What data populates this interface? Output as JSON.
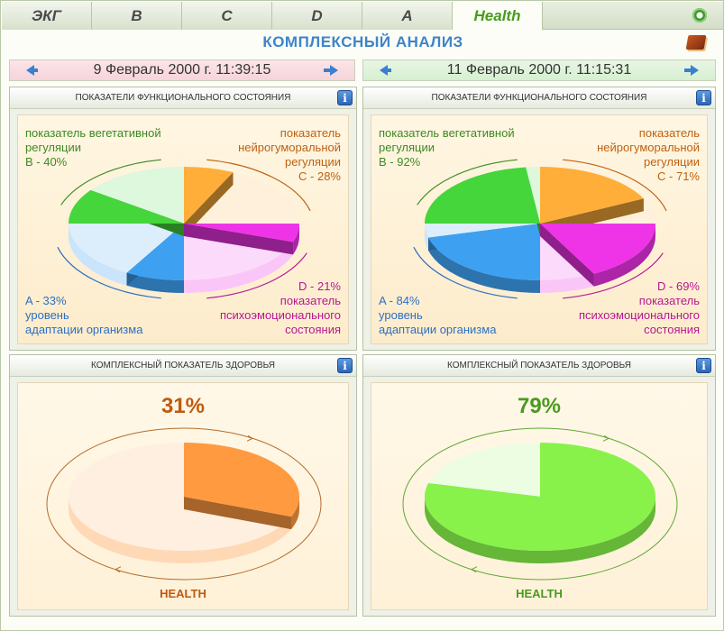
{
  "tabs": [
    {
      "label": "ЭКГ",
      "active": false
    },
    {
      "label": "B",
      "active": false
    },
    {
      "label": "C",
      "active": false
    },
    {
      "label": "D",
      "active": false
    },
    {
      "label": "A",
      "active": false
    },
    {
      "label": "Health",
      "active": true
    }
  ],
  "page_title": "КОМПЛЕКСНЫЙ АНАЛИЗ",
  "dates": {
    "left": "9 Февраль 2000 г. 11:39:15",
    "right": "11 Февраль 2000 г. 11:15:31"
  },
  "panels": {
    "functional_title": "ПОКАЗАТЕЛИ ФУНКЦИОНАЛЬНОГО СОСТОЯНИЯ",
    "health_title": "КОМПЛЕКСНЫЙ ПОКАЗАТЕЛЬ ЗДОРОВЬЯ",
    "info_glyph": "i"
  },
  "labels": {
    "b": [
      "показатель вегетативной",
      "регуляции"
    ],
    "c": [
      "показатель",
      "нейрогуморальной",
      "регуляции"
    ],
    "a": [
      "уровень",
      "адаптации организма"
    ],
    "d": [
      "показатель",
      "психоэмоционального",
      "состояния"
    ],
    "health": "HEALTH"
  },
  "colors": {
    "b": "#44d63a",
    "c": "#ffae3a",
    "d": "#ee34e6",
    "a": "#3ea0f0",
    "health_left": "#ff9a40",
    "health_right": "#88f24a"
  },
  "chart_data": [
    {
      "type": "pie",
      "title": "ПОКАЗАТЕЛИ ФУНКЦИОНАЛЬНОГО СОСТОЯНИЯ",
      "date": "9 Февраль 2000 г. 11:39:15",
      "values": {
        "A": 33,
        "B": 40,
        "C": 28,
        "D": 21
      },
      "value_text": {
        "A": "A - 33%",
        "B": "B - 40%",
        "C": "C - 28%",
        "D": "D - 21%"
      }
    },
    {
      "type": "pie",
      "title": "ПОКАЗАТЕЛИ ФУНКЦИОНАЛЬНОГО СОСТОЯНИЯ",
      "date": "11 Февраль 2000 г. 11:15:31",
      "values": {
        "A": 84,
        "B": 92,
        "C": 71,
        "D": 69
      },
      "value_text": {
        "A": "A - 84%",
        "B": "B - 92%",
        "C": "C - 71%",
        "D": "D - 69%"
      }
    },
    {
      "type": "pie",
      "title": "КОМПЛЕКСНЫЙ ПОКАЗАТЕЛЬ ЗДОРОВЬЯ",
      "value": 31,
      "value_text": "31%",
      "label": "HEALTH"
    },
    {
      "type": "pie",
      "title": "КОМПЛЕКСНЫЙ ПОКАЗАТЕЛЬ ЗДОРОВЬЯ",
      "value": 79,
      "value_text": "79%",
      "label": "HEALTH"
    }
  ]
}
